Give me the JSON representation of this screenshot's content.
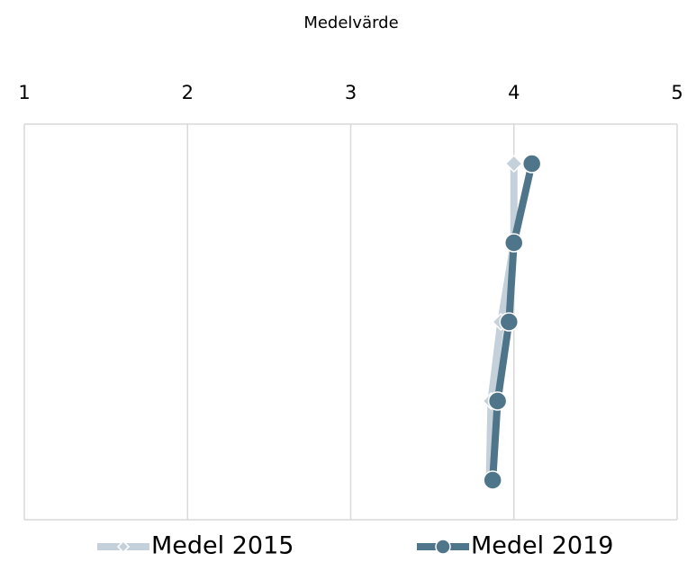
{
  "chart_data": {
    "type": "line",
    "orientation": "horizontal",
    "title": "Medelvärde",
    "categories": [
      null,
      null,
      null,
      null,
      null
    ],
    "series": [
      {
        "name": "Medel 2015",
        "color": "#c5d1da",
        "marker": "diamond",
        "values": [
          4.0,
          4.0,
          3.92,
          3.86,
          3.85
        ]
      },
      {
        "name": "Medel 2019",
        "color": "#4e7589",
        "marker": "circle",
        "values": [
          4.11,
          4.0,
          3.97,
          3.9,
          3.87
        ]
      }
    ],
    "xlim": [
      1,
      5
    ],
    "xticks": [
      1,
      2,
      3,
      4,
      5
    ],
    "grid": true,
    "legend": "bottom"
  }
}
